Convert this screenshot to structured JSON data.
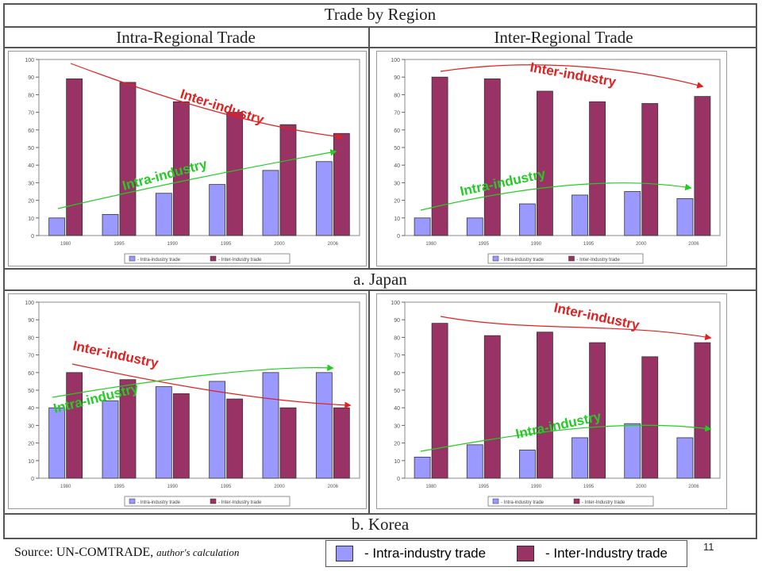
{
  "page": {
    "title": "Trade by Region",
    "col_left": "Intra-Regional Trade",
    "col_right": "Inter-Regional Trade",
    "section_a": "a. Japan",
    "section_b": "b. Korea",
    "source_prefix": "Source: UN-COMTRADE, ",
    "source_italic": "author's calculation",
    "page_number": "11",
    "legend_intra": "- Intra-industry trade",
    "legend_inter": "- Inter-Industry trade"
  },
  "colors": {
    "intra": "#9999ff",
    "inter": "#993366",
    "inter_arrow": "#e32020",
    "intra_arrow": "#22cc22",
    "inter_label": "#e32020",
    "intra_label": "#22cc22"
  },
  "chart_data": [
    {
      "id": "japan-intra-regional",
      "type": "bar",
      "categories": [
        "1980",
        "1995",
        "1990",
        "1995",
        "2000",
        "2006"
      ],
      "series": [
        {
          "name": "- Intra-industry trade",
          "values": [
            10,
            12,
            24,
            29,
            37,
            42
          ]
        },
        {
          "name": "- Inter-Industry trade",
          "values": [
            89,
            87,
            76,
            70,
            63,
            58
          ]
        }
      ],
      "ylim": [
        0,
        100
      ],
      "yticks": [
        0,
        10,
        20,
        30,
        40,
        50,
        60,
        70,
        80,
        90,
        100
      ],
      "annotations": [
        {
          "text": "Inter-industry",
          "series": "inter"
        },
        {
          "text": "Intra-industry",
          "series": "intra"
        }
      ]
    },
    {
      "id": "japan-inter-regional",
      "type": "bar",
      "categories": [
        "1980",
        "1995",
        "1990",
        "1995",
        "2000",
        "2006"
      ],
      "series": [
        {
          "name": "- Intra-industry trade",
          "values": [
            10,
            10,
            18,
            23,
            25,
            21
          ]
        },
        {
          "name": "- Inter-Industry trade",
          "values": [
            90,
            89,
            82,
            76,
            75,
            79
          ]
        }
      ],
      "ylim": [
        0,
        100
      ],
      "yticks": [
        0,
        10,
        20,
        30,
        40,
        50,
        60,
        70,
        80,
        90,
        100
      ],
      "annotations": [
        {
          "text": "Inter-industry",
          "series": "inter"
        },
        {
          "text": "Intra-industry",
          "series": "intra"
        }
      ]
    },
    {
      "id": "korea-intra-regional",
      "type": "bar",
      "categories": [
        "1980",
        "1995",
        "1990",
        "1995",
        "2000",
        "2006"
      ],
      "series": [
        {
          "name": "- Intra-industry trade",
          "values": [
            40,
            44,
            52,
            55,
            60,
            60
          ]
        },
        {
          "name": "- Inter-Industry trade",
          "values": [
            60,
            56,
            48,
            45,
            40,
            40
          ]
        }
      ],
      "ylim": [
        0,
        100
      ],
      "yticks": [
        0,
        10,
        20,
        30,
        40,
        50,
        60,
        70,
        80,
        90,
        100
      ],
      "annotations": [
        {
          "text": "Inter-industry",
          "series": "inter"
        },
        {
          "text": "Intra-industry",
          "series": "intra"
        }
      ]
    },
    {
      "id": "korea-inter-regional",
      "type": "bar",
      "categories": [
        "1980",
        "1995",
        "1990",
        "1995",
        "2000",
        "2006"
      ],
      "series": [
        {
          "name": "- Intra-industry trade",
          "values": [
            12,
            19,
            16,
            23,
            31,
            23
          ]
        },
        {
          "name": "- Inter-Industry trade",
          "values": [
            88,
            81,
            83,
            77,
            69,
            77
          ]
        }
      ],
      "ylim": [
        0,
        100
      ],
      "yticks": [
        0,
        10,
        20,
        30,
        40,
        50,
        60,
        70,
        80,
        90,
        100
      ],
      "annotations": [
        {
          "text": "Inter-industry",
          "series": "inter"
        },
        {
          "text": "Intra-industry",
          "series": "intra"
        }
      ]
    }
  ]
}
